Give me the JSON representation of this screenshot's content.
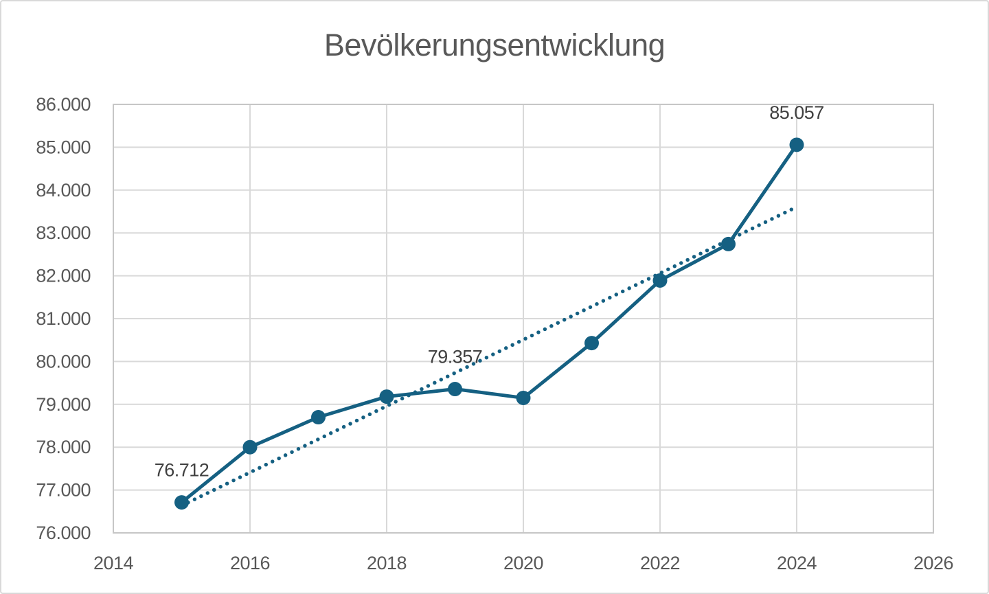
{
  "chart_data": {
    "type": "line",
    "title": "Bevölkerungsentwicklung",
    "xlabel": "",
    "ylabel": "",
    "xlim": [
      2014,
      2026
    ],
    "ylim": [
      76000,
      86000
    ],
    "x_ticks": [
      "2014",
      "2016",
      "2018",
      "2020",
      "2022",
      "2024",
      "2026"
    ],
    "y_ticks": [
      "76.000",
      "77.000",
      "78.000",
      "79.000",
      "80.000",
      "81.000",
      "82.000",
      "83.000",
      "84.000",
      "85.000",
      "86.000"
    ],
    "grid": true,
    "legend": false,
    "x": [
      2015,
      2016,
      2017,
      2018,
      2019,
      2020,
      2021,
      2022,
      2023,
      2024
    ],
    "series": [
      {
        "name": "Bevölkerung",
        "values": [
          76712,
          78000,
          78700,
          79180,
          79357,
          79150,
          80430,
          81890,
          82740,
          85057
        ]
      }
    ],
    "data_labels": [
      "76.712",
      "",
      "",
      "",
      "79.357",
      "",
      "",
      "",
      "",
      "85.057"
    ],
    "trendline": {
      "type": "linear",
      "style": "dotted",
      "x_start": 2015,
      "y_start": 76636,
      "x_end": 2024,
      "y_end": 83607
    },
    "colors": {
      "series": "#156082",
      "grid": "#D9D9D9",
      "axis": "#C6C6C6",
      "title_text": "#595959",
      "tick_text": "#595959",
      "label_text": "#404040",
      "background": "#FFFFFF",
      "frame_border": "#D9D9D9"
    }
  }
}
